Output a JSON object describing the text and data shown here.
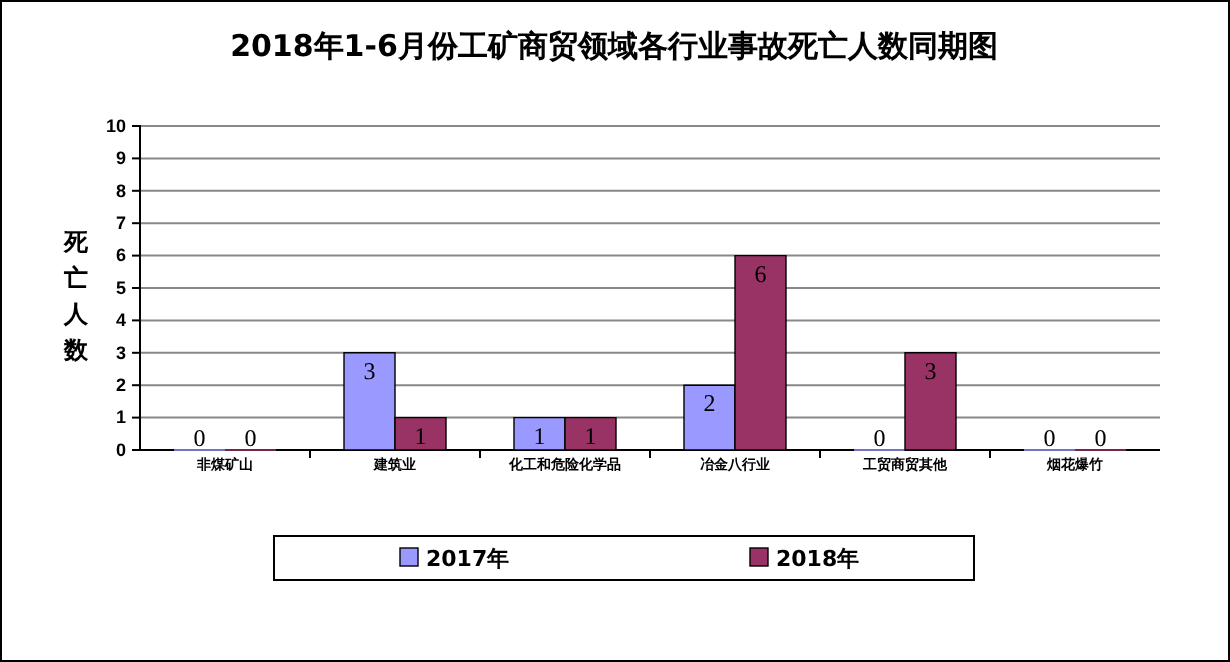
{
  "chart_data": {
    "type": "bar",
    "title": "2018年1-6月份工矿商贸领域各行业事故死亡人数同期图",
    "ylabel": "死亡人数",
    "categories": [
      "非煤矿山",
      "建筑业",
      "化工和危险化学品",
      "冶金八行业",
      "工贸商贸其他",
      "烟花爆竹"
    ],
    "series": [
      {
        "name": "2017年",
        "color": "#9999ff",
        "values": [
          0,
          3,
          1,
          2,
          0,
          0
        ]
      },
      {
        "name": "2018年",
        "color": "#993366",
        "values": [
          0,
          1,
          1,
          6,
          3,
          0
        ]
      }
    ],
    "ylim": [
      0,
      10
    ],
    "yticks": [
      0,
      1,
      2,
      3,
      4,
      5,
      6,
      7,
      8,
      9,
      10
    ],
    "grid": "y",
    "legend": "bottom",
    "data_labels": true
  }
}
